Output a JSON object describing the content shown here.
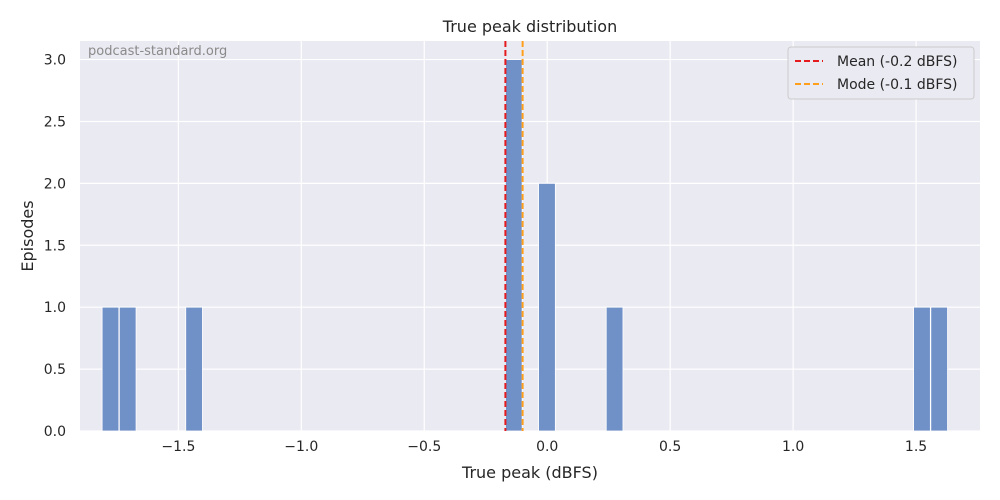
{
  "chart_data": {
    "type": "bar",
    "title": "True peak distribution",
    "xlabel": "True peak (dBFS)",
    "ylabel": "Episodes",
    "watermark": "podcast-standard.org",
    "xlim": [
      -1.9,
      1.76
    ],
    "ylim": [
      0,
      3.15
    ],
    "bin_width": 0.068,
    "bins": [
      {
        "start": -1.81,
        "count": 1
      },
      {
        "start": -1.74,
        "count": 1
      },
      {
        "start": -1.47,
        "count": 1
      },
      {
        "start": -0.17,
        "count": 3
      },
      {
        "start": -0.035,
        "count": 2
      },
      {
        "start": 0.24,
        "count": 1
      },
      {
        "start": 1.49,
        "count": 1
      },
      {
        "start": 1.56,
        "count": 1
      }
    ],
    "x_ticks": [
      -1.5,
      -1.0,
      -0.5,
      0.0,
      0.5,
      1.0,
      1.5
    ],
    "x_tick_labels": [
      "−1.5",
      "−1.0",
      "−0.5",
      "0.0",
      "0.5",
      "1.0",
      "1.5"
    ],
    "y_ticks": [
      0,
      0.5,
      1.0,
      1.5,
      2.0,
      2.5,
      3.0
    ],
    "y_tick_labels": [
      "0.0",
      "0.5",
      "1.0",
      "1.5",
      "2.0",
      "2.5",
      "3.0"
    ],
    "reference_lines": [
      {
        "label": "Mean (-0.2 dBFS)",
        "x": -0.17,
        "color": "#e41a1c"
      },
      {
        "label": "Mode (-0.1 dBFS)",
        "x": -0.1,
        "color": "#ff9f1c"
      }
    ],
    "bar_color": "#7090c8",
    "grid": true,
    "legend_position": "top-right"
  }
}
